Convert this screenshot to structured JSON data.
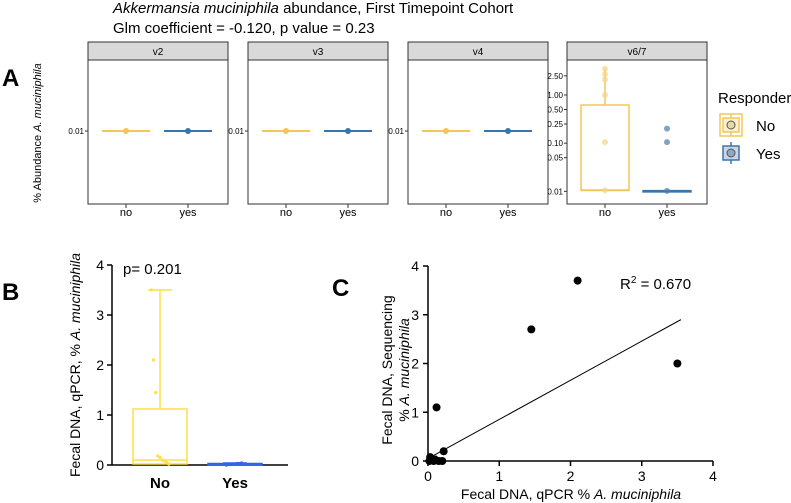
{
  "chart_data": [
    {
      "panel": "A",
      "type": "boxplot",
      "title_species": "Akkermansia muciniphila",
      "title_rest": " abundance, First Timepoint Cohort",
      "subtitle": "Glm coefficient = -0.120, p value = 0.23",
      "ylabel_prefix": "% Abundance ",
      "ylabel_species": "A. muciniphila",
      "legend": {
        "title": "Responder",
        "entries": [
          "No",
          "Yes"
        ],
        "position": "right"
      },
      "facets": [
        {
          "label": "v2",
          "categories": [
            "no",
            "yes"
          ],
          "yscale": "constant",
          "y_ticks": [
            "0.01"
          ],
          "groups": [
            {
              "name": "no",
              "median": 0.01,
              "points": [
                0.01
              ]
            },
            {
              "name": "yes",
              "median": 0.01,
              "points": [
                0.01
              ]
            }
          ]
        },
        {
          "label": "v3",
          "categories": [
            "no",
            "yes"
          ],
          "yscale": "constant",
          "y_ticks": [
            "0.01"
          ],
          "groups": [
            {
              "name": "no",
              "median": 0.01,
              "points": [
                0.01
              ]
            },
            {
              "name": "yes",
              "median": 0.01,
              "points": [
                0.01
              ]
            }
          ]
        },
        {
          "label": "v4",
          "categories": [
            "no",
            "yes"
          ],
          "yscale": "constant",
          "y_ticks": [
            "0.01"
          ],
          "groups": [
            {
              "name": "no",
              "median": 0.01,
              "points": [
                0.01
              ]
            },
            {
              "name": "yes",
              "median": 0.01,
              "points": [
                0.01
              ]
            }
          ]
        },
        {
          "label": "v6/7",
          "categories": [
            "no",
            "yes"
          ],
          "yscale": "log",
          "ylim": [
            0.008,
            4.0
          ],
          "y_ticks": [
            "2.50",
            "1.00",
            "0.50",
            "0.25",
            "0.10",
            "0.05",
            "0.01"
          ],
          "groups": [
            {
              "name": "no",
              "q1": 0.0105,
              "median": 0.0105,
              "q3": 0.62,
              "whisker_low": 0.0105,
              "whisker_high": 3.5,
              "points": [
                3.5,
                2.7,
                2.1,
                1.0,
                0.105,
                0.0105
              ]
            },
            {
              "name": "yes",
              "q1": 0.0102,
              "median": 0.0102,
              "q3": 0.0102,
              "whisker_low": 0.0102,
              "whisker_high": 0.0102,
              "points": [
                0.2,
                0.105,
                0.0102
              ]
            }
          ]
        }
      ]
    },
    {
      "panel": "B",
      "type": "boxplot",
      "ylabel_prefix": "Fecal DNA, qPCR, % ",
      "ylabel_species": "A. muciniphila",
      "annotation": "p= 0.201",
      "categories": [
        "No",
        "Yes"
      ],
      "ylim": [
        0,
        4
      ],
      "y_ticks": [
        "0",
        "1",
        "2",
        "3",
        "4"
      ],
      "groups": [
        {
          "name": "No",
          "q1": 0.02,
          "median": 0.1,
          "q3": 1.12,
          "whisker_low": 0.0,
          "whisker_high": 3.5,
          "points": [
            3.5,
            2.1,
            1.45,
            0.18,
            0.15,
            0.1,
            0.08,
            0.05,
            0.02
          ]
        },
        {
          "name": "Yes",
          "q1": 0.0,
          "median": 0.01,
          "q3": 0.03,
          "whisker_low": 0.0,
          "whisker_high": 0.04,
          "points": [
            0.0,
            0.01,
            0.01,
            0.02,
            0.02,
            0.03,
            0.03,
            0.04
          ]
        }
      ]
    },
    {
      "panel": "C",
      "type": "scatter",
      "xlabel_prefix": "Fecal DNA, qPCR % ",
      "xlabel_species": "A. muciniphila",
      "ylabel_line1": "Fecal DNA, Sequencing",
      "ylabel_line2_prefix": "% ",
      "ylabel_line2_species": "A. muciniphila",
      "annotation_prefix": "R",
      "annotation_sup": "2",
      "annotation_rest": " = 0.670",
      "xlim": [
        0,
        4
      ],
      "ylim": [
        0,
        4
      ],
      "x_ticks": [
        "0",
        "1",
        "2",
        "3",
        "4"
      ],
      "y_ticks": [
        "0",
        "1",
        "2",
        "3",
        "4"
      ],
      "points": [
        {
          "x": 2.1,
          "y": 3.7
        },
        {
          "x": 1.45,
          "y": 2.7
        },
        {
          "x": 3.5,
          "y": 2.0
        },
        {
          "x": 0.12,
          "y": 1.1
        },
        {
          "x": 0.22,
          "y": 0.2
        },
        {
          "x": 0.05,
          "y": 0.05
        },
        {
          "x": 0.1,
          "y": 0.03
        },
        {
          "x": 0.02,
          "y": 0.0
        },
        {
          "x": 0.08,
          "y": 0.0
        },
        {
          "x": 0.15,
          "y": 0.0
        },
        {
          "x": 0.2,
          "y": 0.0
        },
        {
          "x": 0.03,
          "y": 0.08
        }
      ],
      "fit_line": {
        "x0": 0.0,
        "y0": 0.05,
        "x1": 3.55,
        "y1": 2.9
      }
    }
  ],
  "panel_labels": [
    "A",
    "B",
    "C"
  ],
  "colors": {
    "no_fill": "#f6de9f",
    "no_line": "#f1c75c",
    "no_point": "#f5d48a",
    "yes_fill": "#9fb7d6",
    "yes_line": "#3d75a8",
    "yes_point": "#4a7db0",
    "b_no": "#ffe043",
    "b_yes": "#3363e6",
    "strip": "#d9d9d9",
    "grid_border": "#333333"
  }
}
